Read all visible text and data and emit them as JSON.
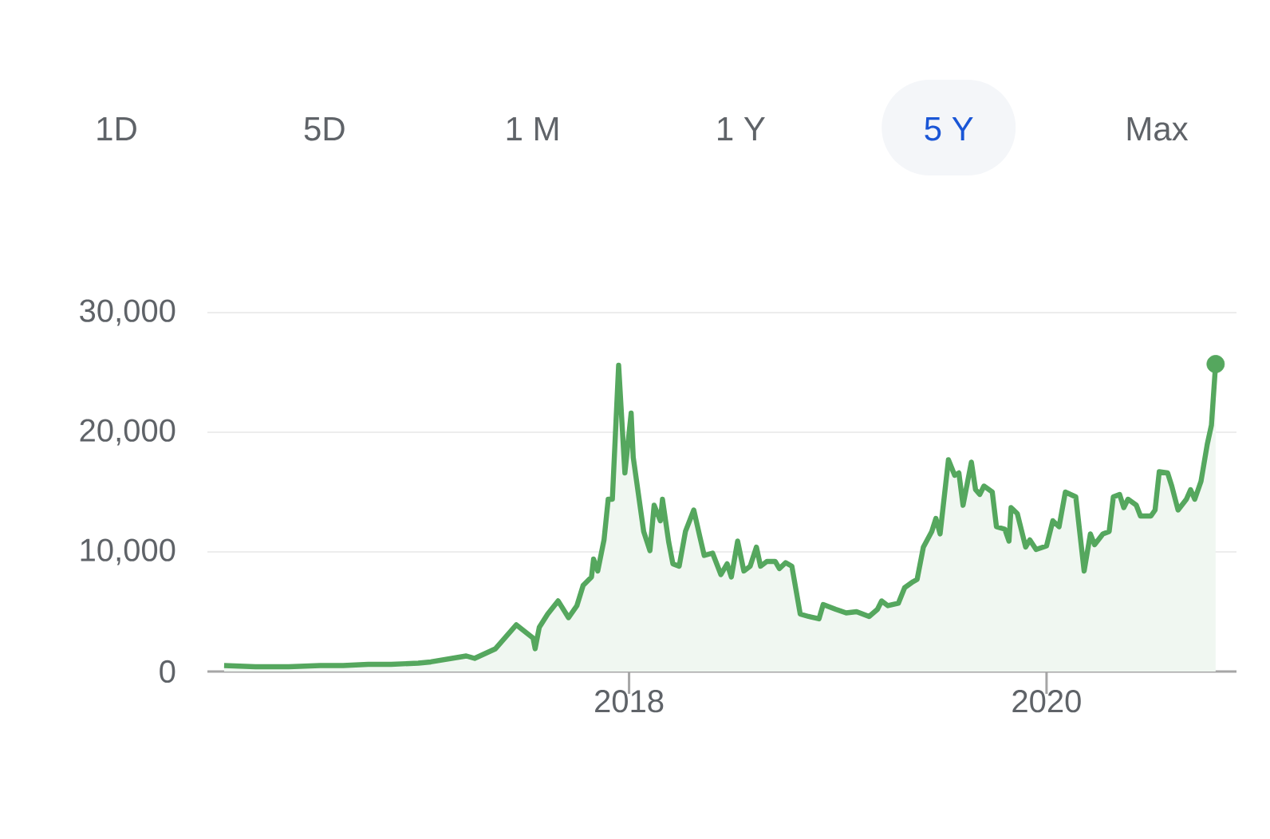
{
  "chart_data": {
    "type": "area",
    "annotations": [
      "1D",
      "5D",
      "1 M",
      "1 Y",
      "5 Y",
      "Max"
    ],
    "x": [
      2016.06,
      2016.21,
      2016.37,
      2016.52,
      2016.63,
      2016.75,
      2016.86,
      2016.99,
      2017.05,
      2017.22,
      2017.26,
      2017.36,
      2017.46,
      2017.54,
      2017.55,
      2017.57,
      2017.61,
      2017.66,
      2017.71,
      2017.75,
      2017.78,
      2017.82,
      2017.83,
      2017.85,
      2017.88,
      2017.9,
      2017.92,
      2017.95,
      2017.98,
      2018.01,
      2018.02,
      2018.07,
      2018.1,
      2018.12,
      2018.15,
      2018.16,
      2018.19,
      2018.21,
      2018.24,
      2018.27,
      2018.31,
      2018.34,
      2018.36,
      2018.4,
      2018.44,
      2018.47,
      2018.49,
      2018.52,
      2018.55,
      2018.58,
      2018.61,
      2018.63,
      2018.66,
      2018.7,
      2018.72,
      2018.75,
      2018.78,
      2018.82,
      2018.86,
      2018.91,
      2018.93,
      2018.99,
      2019.04,
      2019.09,
      2019.15,
      2019.19,
      2019.21,
      2019.24,
      2019.29,
      2019.32,
      2019.36,
      2019.38,
      2019.41,
      2019.45,
      2019.47,
      2019.49,
      2019.53,
      2019.56,
      2019.58,
      2019.6,
      2019.64,
      2019.66,
      2019.68,
      2019.7,
      2019.74,
      2019.76,
      2019.8,
      2019.82,
      2019.83,
      2019.86,
      2019.9,
      2019.92,
      2019.95,
      2020.0,
      2020.03,
      2020.06,
      2020.09,
      2020.14,
      2020.18,
      2020.21,
      2020.23,
      2020.27,
      2020.3,
      2020.32,
      2020.35,
      2020.37,
      2020.39,
      2020.43,
      2020.45,
      2020.5,
      2020.52,
      2020.54,
      2020.58,
      2020.6,
      2020.63,
      2020.67,
      2020.69,
      2020.71,
      2020.74,
      2020.77,
      2020.79,
      2020.81
    ],
    "series": [
      {
        "color": "#55a75e",
        "values": [
          500,
          400,
          400,
          500,
          500,
          600,
          600,
          700,
          800,
          1300,
          1100,
          1900,
          3900,
          2800,
          1900,
          3700,
          4800,
          5900,
          4500,
          5500,
          7200,
          7900,
          9400,
          8400,
          11000,
          14400,
          14400,
          25600,
          16600,
          21600,
          17900,
          11700,
          10100,
          13900,
          12600,
          14400,
          10800,
          9000,
          8800,
          11700,
          13500,
          11200,
          9700,
          9900,
          8100,
          9000,
          7900,
          10900,
          8400,
          8800,
          10400,
          8800,
          9200,
          9200,
          8600,
          9100,
          8800,
          4800,
          4600,
          4400,
          5600,
          5200,
          4900,
          5000,
          4600,
          5200,
          5900,
          5500,
          5700,
          7000,
          7500,
          7700,
          10400,
          11700,
          12800,
          11500,
          17700,
          16400,
          16600,
          13900,
          17500,
          15200,
          14800,
          15500,
          15000,
          12100,
          11900,
          10900,
          13700,
          13200,
          10400,
          11000,
          10200,
          10500,
          12600,
          12100,
          15000,
          14600,
          8400,
          11500,
          10600,
          11500,
          11700,
          14600,
          14800,
          13700,
          14400,
          13900,
          13000,
          13000,
          13500,
          16700,
          16600,
          15500,
          13500,
          14400,
          15200,
          14400,
          15900,
          19000,
          20600,
          25700
        ]
      }
    ],
    "xlim": [
      2015.98,
      2020.91
    ],
    "ylim": [
      0,
      30000
    ],
    "xticks": [
      2018,
      2020
    ],
    "yticks": [
      0,
      {
        "value": 10000,
        "label": "10,000"
      },
      {
        "value": 20000,
        "label": "20,000"
      },
      {
        "value": 30000,
        "label": "30,000"
      }
    ],
    "grid": "y"
  }
}
